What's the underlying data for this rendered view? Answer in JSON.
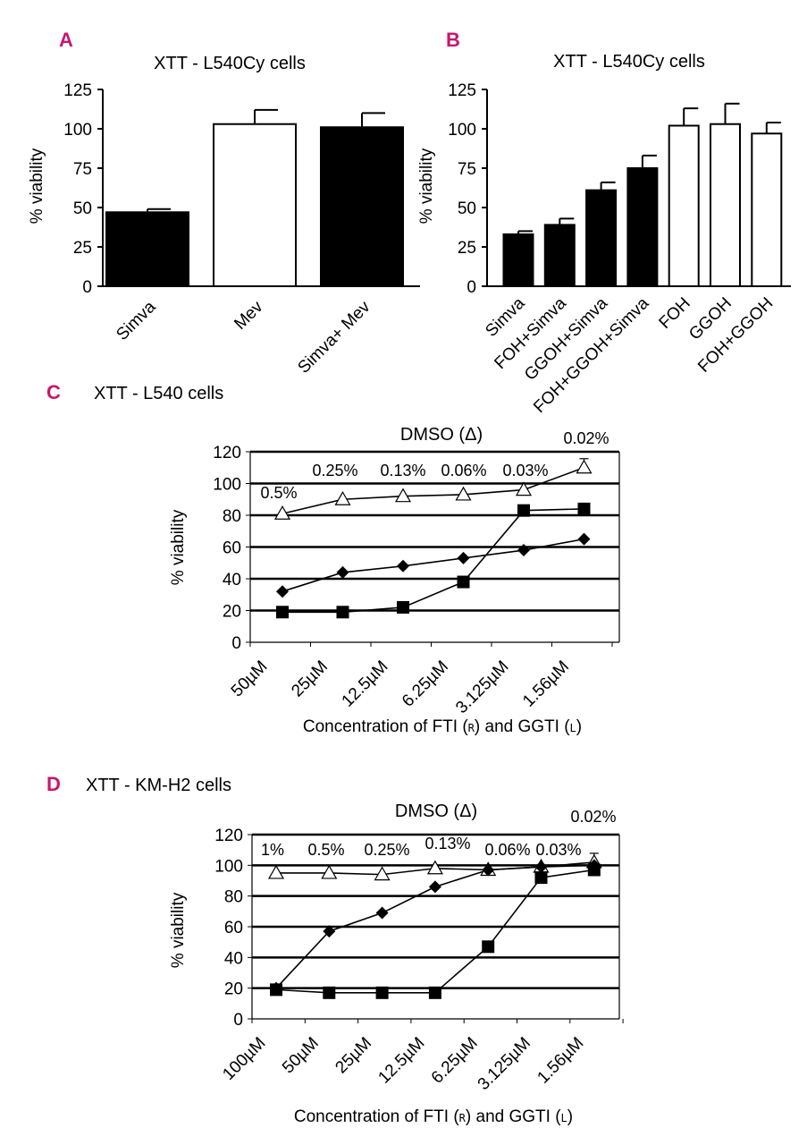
{
  "figure": {
    "panels": [
      {
        "letter": "A",
        "title": "XTT - L540Cy cells"
      },
      {
        "letter": "B",
        "title": "XTT - L540Cy cells"
      },
      {
        "letter": "C",
        "title": "XTT - L540 cells"
      },
      {
        "letter": "D",
        "title": "XTT - KM-H2 cells"
      }
    ]
  },
  "chart_data": [
    {
      "id": "A",
      "type": "bar",
      "title": "XTT - L540Cy cells",
      "ylabel": "% viability",
      "xlabel": "",
      "ylim": [
        0,
        125
      ],
      "yticks": [
        0,
        25,
        50,
        75,
        100,
        125
      ],
      "categories": [
        "Simva",
        "Mev",
        "Simva+ Mev"
      ],
      "values": [
        47,
        103,
        101
      ],
      "errors": [
        2,
        9,
        9
      ],
      "fills": [
        "#000000",
        "#ffffff",
        "#000000"
      ]
    },
    {
      "id": "B",
      "type": "bar",
      "title": "XTT - L540Cy cells",
      "ylabel": "% viability",
      "xlabel": "",
      "ylim": [
        0,
        125
      ],
      "yticks": [
        0,
        25,
        50,
        75,
        100,
        125
      ],
      "categories": [
        "Simva",
        "FOH+Simva",
        "GGOH+Simva",
        "FOH+GGOH+Simva",
        "FOH",
        "GGOH",
        "FOH+GGOH"
      ],
      "values": [
        33,
        39,
        61,
        75,
        102,
        103,
        97
      ],
      "errors": [
        2,
        4,
        5,
        8,
        11,
        13,
        7
      ],
      "fills": [
        "#000000",
        "#000000",
        "#000000",
        "#000000",
        "#ffffff",
        "#ffffff",
        "#ffffff"
      ]
    },
    {
      "id": "C",
      "type": "line",
      "title": "XTT - L540 cells",
      "ylabel": "% viability",
      "xlabel": "Concentration of FTI (",
      "xlabel_r": "R",
      "xlabel_mid": ") and GGTI (",
      "xlabel_l": "L",
      "xlabel_end": ")",
      "ylim": [
        0,
        120
      ],
      "yticks": [
        0,
        20,
        40,
        60,
        80,
        100,
        120
      ],
      "categories": [
        "50µM",
        "25µM",
        "12.5µM",
        "6.25µM",
        "3.125µM",
        "1.56µM"
      ],
      "dmso_label": "DMSO (Δ)",
      "dmso_percents": [
        "0.5%",
        "0.25%",
        "0.13%",
        "0.06%",
        "0.03%",
        "0.02%"
      ],
      "series": [
        {
          "name": "DMSO",
          "marker": "triangle",
          "values": [
            81,
            90,
            92,
            93,
            96,
            110
          ]
        },
        {
          "name": "FTI",
          "marker": "diamond",
          "values": [
            32,
            44,
            48,
            53,
            58,
            65
          ]
        },
        {
          "name": "GGTI",
          "marker": "square",
          "values": [
            19,
            19,
            22,
            38,
            83,
            84
          ]
        }
      ]
    },
    {
      "id": "D",
      "type": "line",
      "title": "XTT - KM-H2 cells",
      "ylabel": "% viability",
      "xlabel": "Concentration of FTI (",
      "xlabel_r": "R",
      "xlabel_mid": ") and GGTI (",
      "xlabel_l": "L",
      "xlabel_end": ")",
      "ylim": [
        0,
        120
      ],
      "yticks": [
        0,
        20,
        40,
        60,
        80,
        100,
        120
      ],
      "categories": [
        "100µM",
        "50µM",
        "25µM",
        "12.5µM",
        "6.25µM",
        "3.125µM",
        "1.56µM"
      ],
      "dmso_label": "DMSO (Δ)",
      "dmso_percents": [
        "1%",
        "0.5%",
        "0.25%",
        "0.13%",
        "0.06%",
        "0.03%",
        "0.02%"
      ],
      "series": [
        {
          "name": "DMSO",
          "marker": "triangle",
          "values": [
            95,
            95,
            94,
            98,
            97,
            99,
            102
          ]
        },
        {
          "name": "FTI",
          "marker": "diamond",
          "values": [
            20,
            57,
            69,
            86,
            97,
            99,
            100
          ]
        },
        {
          "name": "GGTI",
          "marker": "square",
          "values": [
            19,
            17,
            17,
            17,
            47,
            92,
            97
          ]
        }
      ]
    }
  ]
}
